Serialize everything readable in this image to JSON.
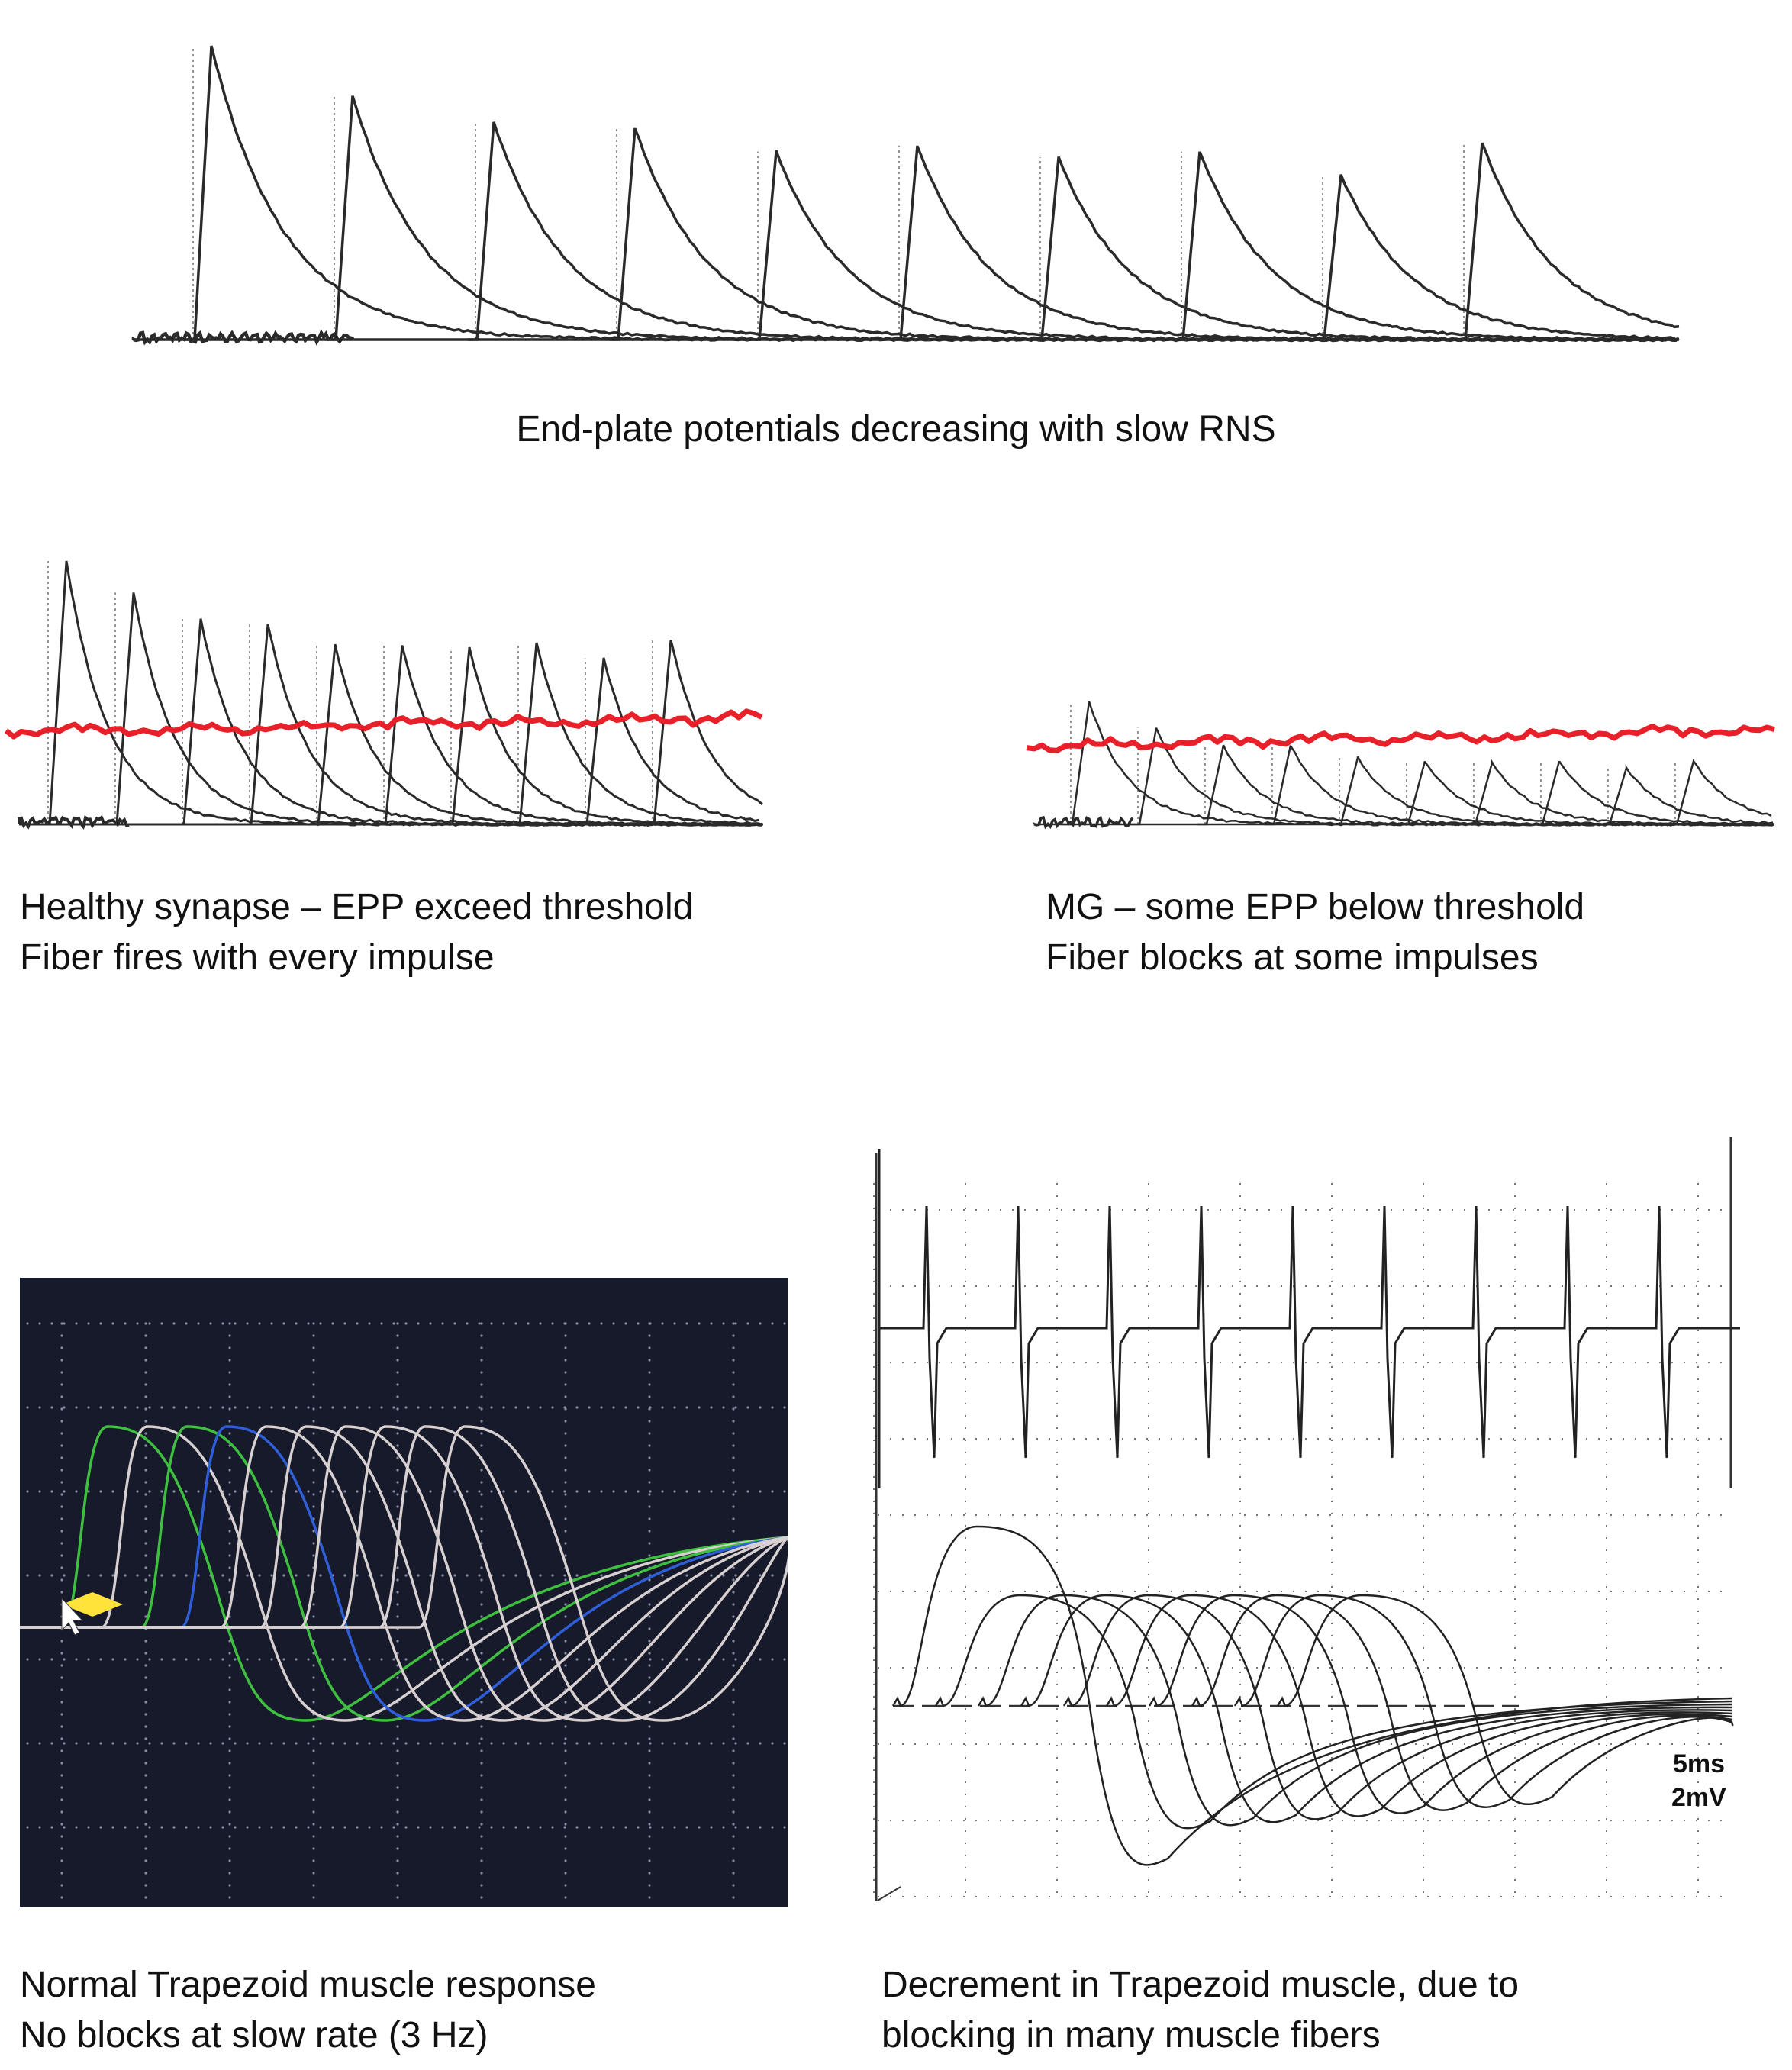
{
  "captions": {
    "top": "End-plate potentials decreasing with slow RNS",
    "healthy": [
      "Healthy synapse – EPP exceed threshold",
      "Fiber fires with every impulse"
    ],
    "mg": [
      "MG – some EPP below threshold",
      "Fiber blocks at some impulses"
    ],
    "normal": [
      "Normal Trapezoid muscle response",
      "No blocks at slow rate (3 Hz)"
    ],
    "decrement": [
      "Decrement in Trapezoid muscle, due to",
      "blocking in many muscle fibers"
    ]
  },
  "scale": {
    "time": "5ms",
    "amplitude": "2mV"
  },
  "colors": {
    "trace": "#2a2a2a",
    "threshold": "#e8202a",
    "screen_bg": "#161a2a",
    "green": "#3fbf3f",
    "blue": "#2f5fd8",
    "grey_trace": "#d8d0d0",
    "cursor": "#ffe23a"
  },
  "figures": {
    "top_epp": {
      "amplitudes": [
        1.0,
        0.83,
        0.74,
        0.72,
        0.64,
        0.66,
        0.62,
        0.64,
        0.56,
        0.67
      ]
    },
    "healthy_epp": {
      "amplitudes": [
        1.0,
        0.88,
        0.78,
        0.76,
        0.68,
        0.68,
        0.67,
        0.69,
        0.63,
        0.7
      ],
      "threshold_level": 0.35
    },
    "mg_epp": {
      "amplitudes": [
        0.7,
        0.55,
        0.45,
        0.45,
        0.38,
        0.36,
        0.35,
        0.36,
        0.32,
        0.36
      ],
      "threshold_level": 0.45
    },
    "normal_cmap": {
      "responses": 10,
      "blocked": 0,
      "rate_hz": 3
    },
    "decrement_cmap": {
      "responses": 10
    }
  }
}
